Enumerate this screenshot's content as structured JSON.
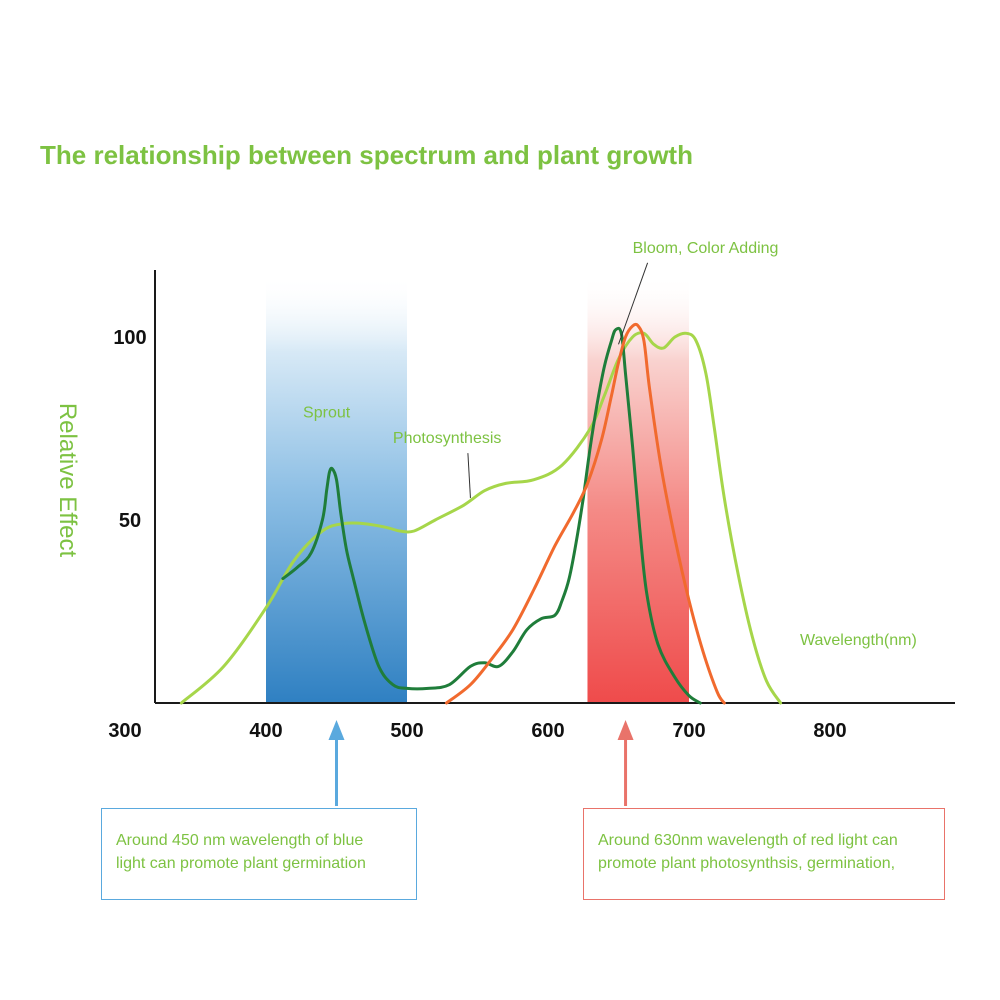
{
  "title": "The relationship between spectrum and plant growth",
  "chart_data": {
    "type": "line",
    "ylabel": "Relative Effect",
    "xlabel": "Wavelength(nm)",
    "xlim": [
      300,
      870
    ],
    "ylim": [
      0,
      118
    ],
    "x_ticks": [
      300,
      400,
      500,
      600,
      700,
      800
    ],
    "y_ticks": [
      50,
      100
    ],
    "bands": [
      {
        "name": "blue",
        "from": 400,
        "to": 500,
        "color": "#3d8cc8"
      },
      {
        "name": "red",
        "from": 628,
        "to": 700,
        "color": "#f04e4e"
      }
    ],
    "series": [
      {
        "name": "Photosynthesis",
        "color": "#a6d64a",
        "points": [
          [
            340,
            0
          ],
          [
            370,
            10
          ],
          [
            400,
            26
          ],
          [
            420,
            39
          ],
          [
            440,
            47
          ],
          [
            455,
            49
          ],
          [
            470,
            49
          ],
          [
            485,
            48
          ],
          [
            495,
            47
          ],
          [
            505,
            47
          ],
          [
            520,
            50
          ],
          [
            540,
            54
          ],
          [
            555,
            58
          ],
          [
            570,
            60
          ],
          [
            590,
            61
          ],
          [
            610,
            65
          ],
          [
            630,
            75
          ],
          [
            640,
            84
          ],
          [
            650,
            94
          ],
          [
            660,
            100
          ],
          [
            668,
            101
          ],
          [
            675,
            98
          ],
          [
            682,
            97
          ],
          [
            690,
            100
          ],
          [
            698,
            101
          ],
          [
            705,
            99
          ],
          [
            712,
            90
          ],
          [
            718,
            75
          ],
          [
            725,
            56
          ],
          [
            735,
            35
          ],
          [
            745,
            18
          ],
          [
            755,
            6
          ],
          [
            765,
            0
          ]
        ]
      },
      {
        "name": "Sprout",
        "color": "#1f7d3a",
        "points": [
          [
            412,
            34
          ],
          [
            422,
            37
          ],
          [
            432,
            41
          ],
          [
            440,
            50
          ],
          [
            443,
            58
          ],
          [
            445,
            63
          ],
          [
            447,
            64
          ],
          [
            450,
            61
          ],
          [
            453,
            52
          ],
          [
            457,
            42
          ],
          [
            462,
            34
          ],
          [
            470,
            22
          ],
          [
            480,
            10
          ],
          [
            490,
            5
          ],
          [
            500,
            4
          ],
          [
            515,
            4
          ],
          [
            530,
            5
          ],
          [
            545,
            10
          ],
          [
            555,
            11
          ],
          [
            565,
            10
          ],
          [
            575,
            14
          ],
          [
            585,
            20
          ],
          [
            595,
            23
          ],
          [
            605,
            24
          ],
          [
            610,
            28
          ],
          [
            615,
            34
          ],
          [
            620,
            44
          ],
          [
            625,
            56
          ],
          [
            630,
            70
          ],
          [
            635,
            82
          ],
          [
            640,
            92
          ],
          [
            645,
            99
          ],
          [
            648,
            102
          ],
          [
            652,
            101
          ],
          [
            655,
            90
          ],
          [
            660,
            70
          ],
          [
            665,
            48
          ],
          [
            670,
            30
          ],
          [
            678,
            16
          ],
          [
            690,
            7
          ],
          [
            700,
            2
          ],
          [
            708,
            0
          ]
        ]
      },
      {
        "name": "Bloom, Color Adding",
        "color": "#f16a2e",
        "points": [
          [
            528,
            0
          ],
          [
            545,
            5
          ],
          [
            560,
            12
          ],
          [
            575,
            20
          ],
          [
            590,
            31
          ],
          [
            605,
            43
          ],
          [
            618,
            52
          ],
          [
            628,
            60
          ],
          [
            638,
            72
          ],
          [
            645,
            84
          ],
          [
            650,
            93
          ],
          [
            655,
            100
          ],
          [
            660,
            103
          ],
          [
            664,
            103
          ],
          [
            668,
            99
          ],
          [
            672,
            86
          ],
          [
            680,
            65
          ],
          [
            690,
            45
          ],
          [
            700,
            28
          ],
          [
            710,
            14
          ],
          [
            720,
            3
          ],
          [
            725,
            0
          ]
        ]
      }
    ],
    "annotations": [
      {
        "text": "Sprout",
        "x": 443,
        "y": 78,
        "target": [
          448,
          63
        ]
      },
      {
        "text": "Photosynthesis",
        "x": 490,
        "y": 71,
        "target": [
          545,
          56
        ]
      },
      {
        "text": "Bloom, Color Adding",
        "x": 660,
        "y": 123,
        "target": [
          650,
          98
        ]
      }
    ],
    "markers": [
      {
        "x": 450,
        "color": "#5aa9de"
      },
      {
        "x": 655,
        "color": "#e9736a"
      }
    ]
  },
  "notes": {
    "blue_line1": "Around 450 nm wavelength of blue",
    "blue_line2": "light can promote plant germination",
    "red_line1": "Around 630nm wavelength of red light can",
    "red_line2": "promote plant photosynthsis, germination,"
  },
  "colors": {
    "accent_green": "#7dc242",
    "axis": "#1a1a1a"
  }
}
